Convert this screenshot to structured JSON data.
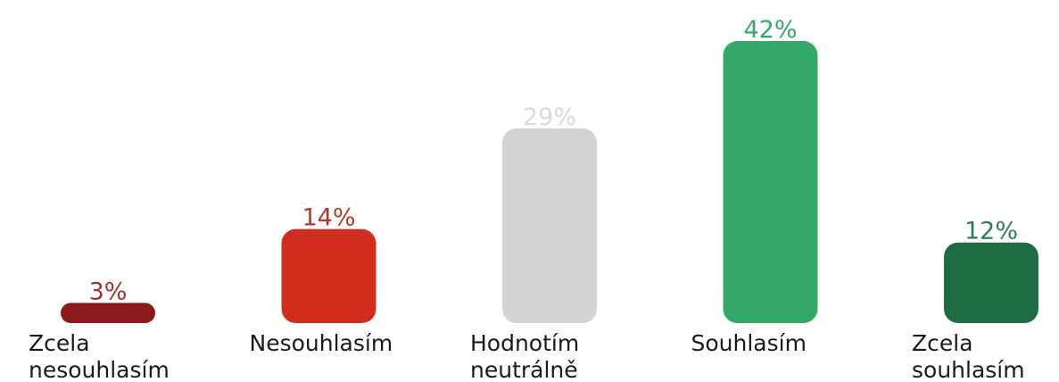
{
  "chart_data": {
    "type": "bar",
    "title": "",
    "xlabel": "",
    "ylabel": "",
    "ylim": [
      0,
      42
    ],
    "grid": false,
    "legend": "none",
    "categories": [
      [
        "Zcela",
        "nesouhlasím"
      ],
      [
        "Nesouhlasím"
      ],
      [
        "Hodnotím",
        "neutrálně"
      ],
      [
        "Souhlasím"
      ],
      [
        "Zcela",
        "souhlasím"
      ]
    ],
    "values": [
      3,
      14,
      29,
      42,
      12
    ],
    "value_labels": [
      "3%",
      "14%",
      "29%",
      "42%",
      "12%"
    ],
    "colors": [
      "#8b1a1a",
      "#cf2e1e",
      "#d3d3d3",
      "#33a867",
      "#1f6b43"
    ],
    "value_label_colors": [
      "#a03232",
      "#b5382a",
      "#d9d9d9",
      "#33a867",
      "#2e7d52"
    ]
  }
}
